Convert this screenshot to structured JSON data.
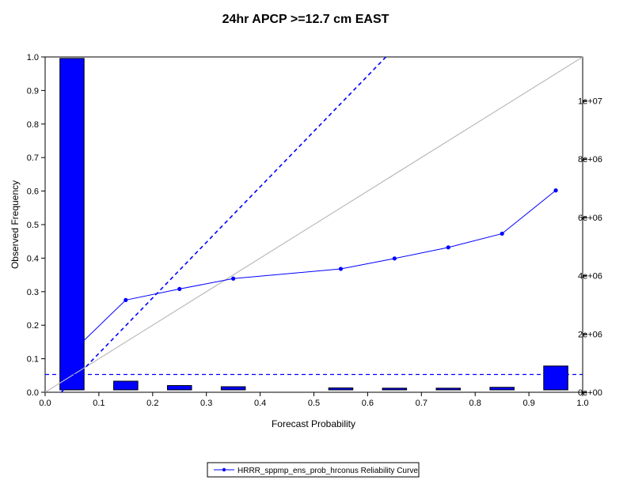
{
  "chart_data": {
    "type": "line",
    "title": "24hr APCP >=12.7 cm EAST",
    "xlabel": "Forecast Probability",
    "ylabel": "Observed Frequency",
    "xlim": [
      0,
      1
    ],
    "ylim": [
      0,
      1
    ],
    "x_ticks": [
      "0.0",
      "0.1",
      "0.2",
      "0.3",
      "0.4",
      "0.5",
      "0.6",
      "0.7",
      "0.8",
      "0.9",
      "1.0"
    ],
    "y_ticks": [
      "0.0",
      "0.1",
      "0.2",
      "0.3",
      "0.4",
      "0.5",
      "0.6",
      "0.7",
      "0.8",
      "0.9",
      "1.0"
    ],
    "y2_ticks": [
      {
        "value": 0,
        "label": "0e+00"
      },
      {
        "value": 2000000,
        "label": "2e+06"
      },
      {
        "value": 4000000,
        "label": "4e+06"
      },
      {
        "value": 6000000,
        "label": "6e+06"
      },
      {
        "value": 8000000,
        "label": "8e+06"
      },
      {
        "value": 10000000,
        "label": "1e+07"
      }
    ],
    "y2lim": [
      0,
      11500000
    ],
    "series": [
      {
        "name": "HRRR_sppmp_ens_prob_hrconus Reliability Curve",
        "color": "#0000ff",
        "x": [
          0.05,
          0.15,
          0.25,
          0.35,
          0.55,
          0.65,
          0.75,
          0.85,
          0.95
        ],
        "y": [
          0.12,
          0.275,
          0.308,
          0.339,
          0.368,
          0.399,
          0.432,
          0.473,
          0.602
        ]
      }
    ],
    "histogram": {
      "color": "#0000ff",
      "bin_width": 0.05,
      "x": [
        0.05,
        0.15,
        0.25,
        0.35,
        0.55,
        0.65,
        0.75,
        0.85,
        0.95
      ],
      "counts": [
        11450000,
        380000,
        230000,
        190000,
        150000,
        140000,
        140000,
        170000,
        900000
      ]
    },
    "reference_lines": {
      "perfect_reliability": {
        "color": "#bbbbbb",
        "from": [
          0,
          0
        ],
        "to": [
          1,
          1
        ]
      },
      "climatology": {
        "color": "#0000ff",
        "style": "dashed",
        "y": 0.053
      },
      "no_skill": {
        "color": "#0000ff",
        "style": "dashed",
        "from": [
          0.03,
          0
        ],
        "to": [
          0.634,
          1
        ]
      }
    },
    "grid": false,
    "legend": "bottom-center"
  }
}
